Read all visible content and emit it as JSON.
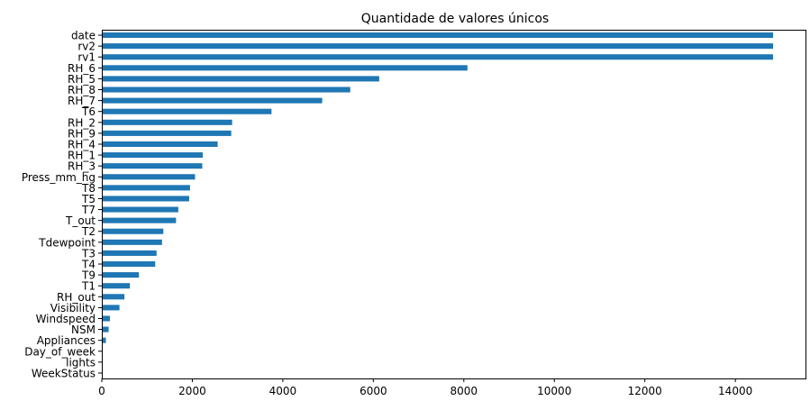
{
  "chart_data": {
    "type": "bar",
    "orientation": "horizontal",
    "title": "Quantidade de valores únicos",
    "xlabel": "",
    "ylabel": "",
    "xlim": [
      0,
      15550
    ],
    "grid": false,
    "legend": "none",
    "bar_color": "#1f77b4",
    "x_ticks": [
      0,
      2000,
      4000,
      6000,
      8000,
      10000,
      12000,
      14000
    ],
    "categories": [
      "date",
      "rv2",
      "rv1",
      "RH_6",
      "RH_5",
      "RH_8",
      "RH_7",
      "T6",
      "RH_2",
      "RH_9",
      "RH_4",
      "RH_1",
      "RH_3",
      "Press_mm_hg",
      "T8",
      "T5",
      "T7",
      "T_out",
      "T2",
      "Tdewpoint",
      "T3",
      "T4",
      "T9",
      "T1",
      "RH_out",
      "Visibility",
      "Windspeed",
      "NSM",
      "Appliances",
      "Day_of_week",
      "lights",
      "WeekStatus"
    ],
    "values": [
      14834,
      14834,
      14834,
      8080,
      6130,
      5490,
      4870,
      3750,
      2880,
      2860,
      2560,
      2230,
      2220,
      2060,
      1950,
      1930,
      1690,
      1640,
      1360,
      1330,
      1210,
      1180,
      820,
      620,
      500,
      390,
      180,
      150,
      90,
      7,
      8,
      2
    ]
  }
}
